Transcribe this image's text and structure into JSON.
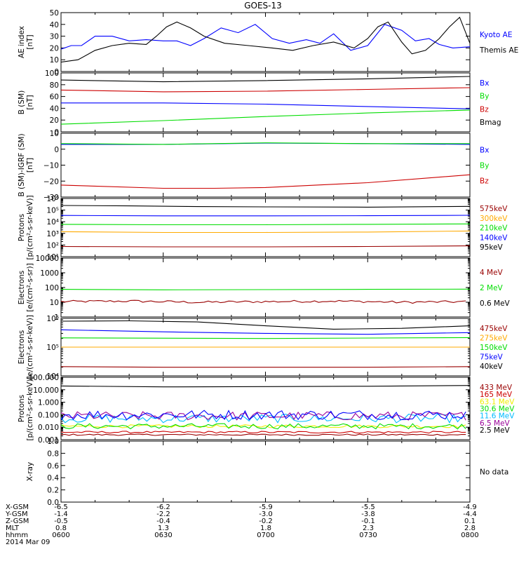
{
  "title": "GOES-13",
  "footer": {
    "rows": [
      {
        "label": "X-GSM",
        "values": [
          "-6.5",
          "-6.2",
          "-5.9",
          "-5.5",
          "-4.9"
        ]
      },
      {
        "label": "Y-GSM",
        "values": [
          "-1.4",
          "-2.2",
          "-3.0",
          "-3.8",
          "-4.4"
        ]
      },
      {
        "label": "Z-GSM",
        "values": [
          "-0.5",
          "-0.4",
          "-0.2",
          "-0.1",
          "0.1"
        ]
      },
      {
        "label": "MLT",
        "values": [
          "0.8",
          "1.3",
          "1.8",
          "2.3",
          "2.8"
        ]
      },
      {
        "label": "hhmm",
        "values": [
          "0600",
          "0630",
          "0700",
          "0730",
          "0800"
        ]
      }
    ],
    "date": "2014 Mar 09"
  },
  "colors": {
    "black": "#000000",
    "blue": "#0000ff",
    "red": "#cc0000",
    "green": "#00dd00",
    "darkred": "#990000",
    "orange": "#ffaa00",
    "cyan": "#00bbff",
    "yellow": "#eeee00",
    "purple": "#990099",
    "brown": "#993300"
  },
  "chart_data": [
    {
      "type": "line",
      "ylabel": [
        "AE index",
        "[nT]"
      ],
      "ylim": [
        0,
        50
      ],
      "scale": "linear",
      "ticks": [
        {
          "v": 0,
          "t": "0"
        },
        {
          "v": 10,
          "t": "10"
        },
        {
          "v": 20,
          "t": "20"
        },
        {
          "v": 30,
          "t": "30"
        },
        {
          "v": 40,
          "t": "40"
        },
        {
          "v": 50,
          "t": "50"
        }
      ],
      "series": [
        {
          "name": "Kyoto AE",
          "color": "#0000ff",
          "x": [
            0,
            3,
            6,
            10,
            15,
            20,
            25,
            30,
            34,
            38,
            42,
            47,
            52,
            57,
            62,
            67,
            72,
            76,
            80,
            85,
            90,
            95,
            100,
            104,
            108,
            111,
            115,
            120
          ],
          "y": [
            19,
            22,
            22,
            30,
            30,
            26,
            27,
            26,
            26,
            22,
            28,
            37,
            33,
            40,
            28,
            24,
            27,
            24,
            32,
            18,
            22,
            40,
            35,
            26,
            28,
            23,
            20,
            21
          ]
        },
        {
          "name": "Themis AE",
          "color": "#000000",
          "x": [
            0,
            5,
            10,
            15,
            20,
            25,
            28,
            31,
            34,
            38,
            42,
            48,
            55,
            62,
            68,
            74,
            80,
            86,
            90,
            93,
            96,
            100,
            103,
            107,
            111,
            114,
            117,
            120
          ],
          "y": [
            8,
            10,
            18,
            22,
            24,
            23,
            30,
            38,
            42,
            37,
            30,
            24,
            22,
            20,
            18,
            22,
            25,
            20,
            28,
            38,
            42,
            25,
            15,
            18,
            28,
            38,
            46,
            24
          ]
        }
      ]
    },
    {
      "type": "line",
      "ylabel": [
        "B (SM)",
        "[nT]"
      ],
      "ylim": [
        0,
        100
      ],
      "scale": "linear",
      "ticks": [
        {
          "v": 0,
          "t": "0"
        },
        {
          "v": 20,
          "t": "20"
        },
        {
          "v": 40,
          "t": "40"
        },
        {
          "v": 60,
          "t": "60"
        },
        {
          "v": 80,
          "t": "80"
        },
        {
          "v": 100,
          "t": "100"
        }
      ],
      "series": [
        {
          "name": "Bx",
          "color": "#0000ff",
          "x": [
            0,
            30,
            60,
            90,
            120
          ],
          "y": [
            49,
            49,
            47,
            43,
            39
          ]
        },
        {
          "name": "By",
          "color": "#00dd00",
          "x": [
            0,
            30,
            60,
            90,
            120
          ],
          "y": [
            13,
            19,
            26,
            32,
            37
          ]
        },
        {
          "name": "Bz",
          "color": "#cc0000",
          "x": [
            0,
            30,
            60,
            90,
            120
          ],
          "y": [
            71,
            68,
            69,
            72,
            75
          ]
        },
        {
          "name": "Bmag",
          "color": "#000000",
          "x": [
            0,
            30,
            60,
            90,
            120
          ],
          "y": [
            88,
            85,
            87,
            90,
            94
          ]
        }
      ]
    },
    {
      "type": "line",
      "ylabel": [
        "B (SM)-IGRF (SM)",
        "[nT]"
      ],
      "ylim": [
        -30,
        10
      ],
      "scale": "linear",
      "ticks": [
        {
          "v": -30,
          "t": "−30"
        },
        {
          "v": -20,
          "t": "−20"
        },
        {
          "v": -10,
          "t": "−10"
        },
        {
          "v": 0,
          "t": "0"
        },
        {
          "v": 10,
          "t": "10"
        }
      ],
      "series": [
        {
          "name": "Bx",
          "color": "#0000ff",
          "x": [
            0,
            30,
            60,
            90,
            120
          ],
          "y": [
            3,
            3,
            3.8,
            3.5,
            3
          ]
        },
        {
          "name": "By",
          "color": "#00dd00",
          "x": [
            0,
            30,
            60,
            90,
            120
          ],
          "y": [
            3.5,
            3,
            4,
            3.5,
            3.5
          ]
        },
        {
          "name": "Bz",
          "color": "#cc0000",
          "x": [
            0,
            30,
            45,
            60,
            90,
            120
          ],
          "y": [
            -22.5,
            -24.5,
            -24.5,
            -24,
            -21,
            -16
          ]
        }
      ]
    },
    {
      "type": "line",
      "ylabel": [
        "Protons",
        "[p/(cm²-s-sr-keV)]"
      ],
      "ylim": [
        10,
        1000000
      ],
      "scale": "log",
      "ticks": [
        {
          "v": 10,
          "t": "10¹"
        },
        {
          "v": 100,
          "t": "10²"
        },
        {
          "v": 1000,
          "t": "10³"
        },
        {
          "v": 10000,
          "t": "10⁴"
        },
        {
          "v": 100000,
          "t": "10⁵"
        },
        {
          "v": 1000000,
          "t": "10⁶"
        }
      ],
      "series": [
        {
          "name": "575keV",
          "color": "#990000",
          "x": [
            0,
            120
          ],
          "y": [
            1500000,
            1500000
          ]
        },
        {
          "name": "300keV",
          "color": "#ffaa00",
          "x": [
            0,
            30,
            60,
            90,
            120
          ],
          "y": [
            1400,
            1200,
            1200,
            1300,
            1600
          ]
        },
        {
          "name": "210keV",
          "color": "#00dd00",
          "x": [
            0,
            30,
            60,
            90,
            120
          ],
          "y": [
            6000,
            5500,
            5500,
            6000,
            6500
          ]
        },
        {
          "name": "140keV",
          "color": "#0000ff",
          "x": [
            0,
            30,
            60,
            90,
            120
          ],
          "y": [
            35000,
            32000,
            32000,
            33000,
            36000
          ]
        },
        {
          "name": "95keV",
          "color": "#000000",
          "x": [
            0,
            20,
            40,
            60,
            90,
            120
          ],
          "y": [
            250000,
            230000,
            200000,
            190000,
            180000,
            210000
          ]
        },
        {
          "name": "",
          "color": "#990000",
          "x": [
            0,
            30,
            60,
            90,
            120
          ],
          "y": [
            75,
            70,
            70,
            75,
            85
          ]
        }
      ]
    },
    {
      "type": "line",
      "ylabel": [
        "Electrons",
        "[e/(cm²-s-sr)]"
      ],
      "ylim": [
        1,
        10000
      ],
      "scale": "log",
      "ticks": [
        {
          "v": 1,
          "t": "1"
        },
        {
          "v": 10,
          "t": "10"
        },
        {
          "v": 100,
          "t": "100"
        },
        {
          "v": 1000,
          "t": "1000"
        },
        {
          "v": 10000,
          "t": "10000"
        }
      ],
      "series": [
        {
          "name": "4 MeV",
          "color": "#990000",
          "x": [
            0,
            20,
            40,
            60,
            80,
            100,
            120
          ],
          "y": [
            11,
            12,
            10,
            11,
            12,
            10,
            11
          ],
          "noise": 0.08
        },
        {
          "name": "2 MeV",
          "color": "#00dd00",
          "x": [
            0,
            30,
            60,
            90,
            120
          ],
          "y": [
            75,
            70,
            72,
            75,
            78
          ]
        },
        {
          "name": "0.6 MeV",
          "color": "#000000",
          "x": [
            14,
            66
          ],
          "y": [
            10000,
            10000
          ]
        }
      ]
    },
    {
      "type": "line",
      "ylabel": [
        "Electrons",
        "[e/(cm²-s-sr-keV)]"
      ],
      "ylim": [
        10000,
        1000000
      ],
      "scale": "log",
      "ticks": [
        {
          "v": 10000,
          "t": "10⁴"
        },
        {
          "v": 100000,
          "t": "10⁵"
        },
        {
          "v": 1000000,
          "t": "10⁶"
        }
      ],
      "series": [
        {
          "name": "475keV",
          "color": "#990000",
          "x": [
            0,
            30,
            60,
            90,
            120
          ],
          "y": [
            21000,
            20000,
            20000,
            20000,
            21000
          ]
        },
        {
          "name": "275keV",
          "color": "#ffaa00",
          "x": [
            0,
            60,
            120
          ],
          "y": [
            100000,
            100000,
            100000
          ]
        },
        {
          "name": "150keV",
          "color": "#00dd00",
          "x": [
            0,
            60,
            120
          ],
          "y": [
            210000,
            200000,
            215000
          ]
        },
        {
          "name": "75keV",
          "color": "#0000ff",
          "x": [
            0,
            30,
            60,
            90,
            120
          ],
          "y": [
            400000,
            340000,
            300000,
            280000,
            320000
          ]
        },
        {
          "name": "40keV",
          "color": "#000000",
          "x": [
            0,
            20,
            40,
            60,
            80,
            100,
            120
          ],
          "y": [
            800000,
            820000,
            750000,
            550000,
            420000,
            450000,
            550000
          ]
        }
      ]
    },
    {
      "type": "line",
      "ylabel": [
        "Protons",
        "[p/(cm²-s-sr-keV)]"
      ],
      "ylim": [
        0.001,
        100
      ],
      "scale": "log",
      "ticks": [
        {
          "v": 0.001,
          "t": "0.001"
        },
        {
          "v": 0.01,
          "t": "0.010"
        },
        {
          "v": 0.1,
          "t": "0.100"
        },
        {
          "v": 1,
          "t": "1.000"
        },
        {
          "v": 10,
          "t": "10.000"
        },
        {
          "v": 100,
          "t": "100.000"
        }
      ],
      "series": [
        {
          "name": "433 MeV",
          "color": "#990000",
          "x": [
            0,
            120
          ],
          "y": [
            0.0025,
            0.0025
          ],
          "noise": 0.06
        },
        {
          "name": "165 MeV",
          "color": "#cc0000",
          "x": [
            0,
            120
          ],
          "y": [
            0.004,
            0.004
          ],
          "noise": 0.08
        },
        {
          "name": "63.1 MeV",
          "color": "#eeee00",
          "x": [
            0,
            120
          ],
          "y": [
            0.012,
            0.012
          ],
          "noise": 0.12
        },
        {
          "name": "30.6 MeV",
          "color": "#00dd00",
          "x": [
            0,
            120
          ],
          "y": [
            0.012,
            0.012
          ],
          "noise": 0.22
        },
        {
          "name": "11.6 MeV",
          "color": "#00bbff",
          "x": [
            0,
            120
          ],
          "y": [
            0.05,
            0.05
          ],
          "noise": 0.35
        },
        {
          "name": "6.5 MeV",
          "color": "#990099",
          "x": [
            0,
            120
          ],
          "y": [
            0.08,
            0.08
          ],
          "noise": 0.35
        },
        {
          "name": "",
          "color": "#0000ff",
          "x": [
            0,
            120
          ],
          "y": [
            0.1,
            0.1
          ],
          "noise": 0.4
        },
        {
          "name": "2.5 MeV",
          "color": "#000000",
          "x": [
            0,
            30,
            60,
            90,
            120
          ],
          "y": [
            20,
            17,
            18,
            19,
            22
          ]
        }
      ]
    },
    {
      "type": "line",
      "ylabel": [
        "X-ray",
        ""
      ],
      "ylim": [
        0,
        1
      ],
      "scale": "linear",
      "ticks": [
        {
          "v": 0,
          "t": "0.0"
        },
        {
          "v": 0.2,
          "t": "0.2"
        },
        {
          "v": 0.4,
          "t": "0.4"
        },
        {
          "v": 0.6,
          "t": "0.6"
        },
        {
          "v": 0.8,
          "t": "0.8"
        },
        {
          "v": 1,
          "t": "1.0"
        }
      ],
      "series": [],
      "note": "No data"
    }
  ]
}
